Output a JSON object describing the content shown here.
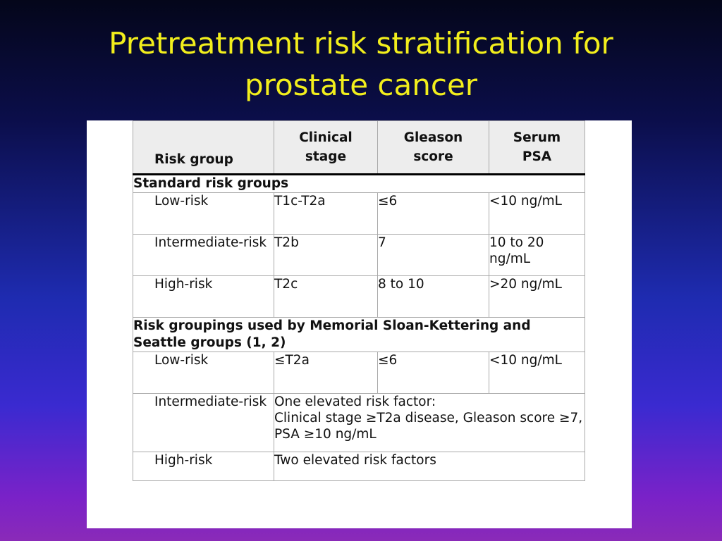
{
  "slide": {
    "title_line1": "Pretreatment risk stratification for",
    "title_line2": "prostate cancer"
  },
  "table": {
    "headers": {
      "risk_group": "Risk group",
      "clinical_stage_1": "Clinical",
      "clinical_stage_2": "stage",
      "gleason_1": "Gleason",
      "gleason_2": "score",
      "psa_1": "Serum",
      "psa_2": "PSA"
    },
    "section1": {
      "title": "Standard risk groups",
      "rows": [
        {
          "group": "Low-risk",
          "stage": "T1c-T2a",
          "gleason": "≤6",
          "psa": "<10 ng/mL"
        },
        {
          "group": "Intermediate-risk",
          "stage": "T2b",
          "gleason": "7",
          "psa": "10 to 20 ng/mL"
        },
        {
          "group": "High-risk",
          "stage": "T2c",
          "gleason": "8 to 10",
          "psa": ">20 ng/mL"
        }
      ]
    },
    "section2": {
      "title": "Risk groupings used by Memorial Sloan-Kettering and Seattle groups (1, 2)",
      "low": {
        "group": "Low-risk",
        "stage": "≤T2a",
        "gleason": "≤6",
        "psa": "<10 ng/mL"
      },
      "intermediate": {
        "group": "Intermediate-risk",
        "line1": "One elevated risk factor:",
        "line2": "Clinical stage ≥T2a disease, Gleason score ≥7, PSA ≥10 ng/mL"
      },
      "high": {
        "group": "High-risk",
        "text": "Two elevated risk factors"
      }
    }
  }
}
